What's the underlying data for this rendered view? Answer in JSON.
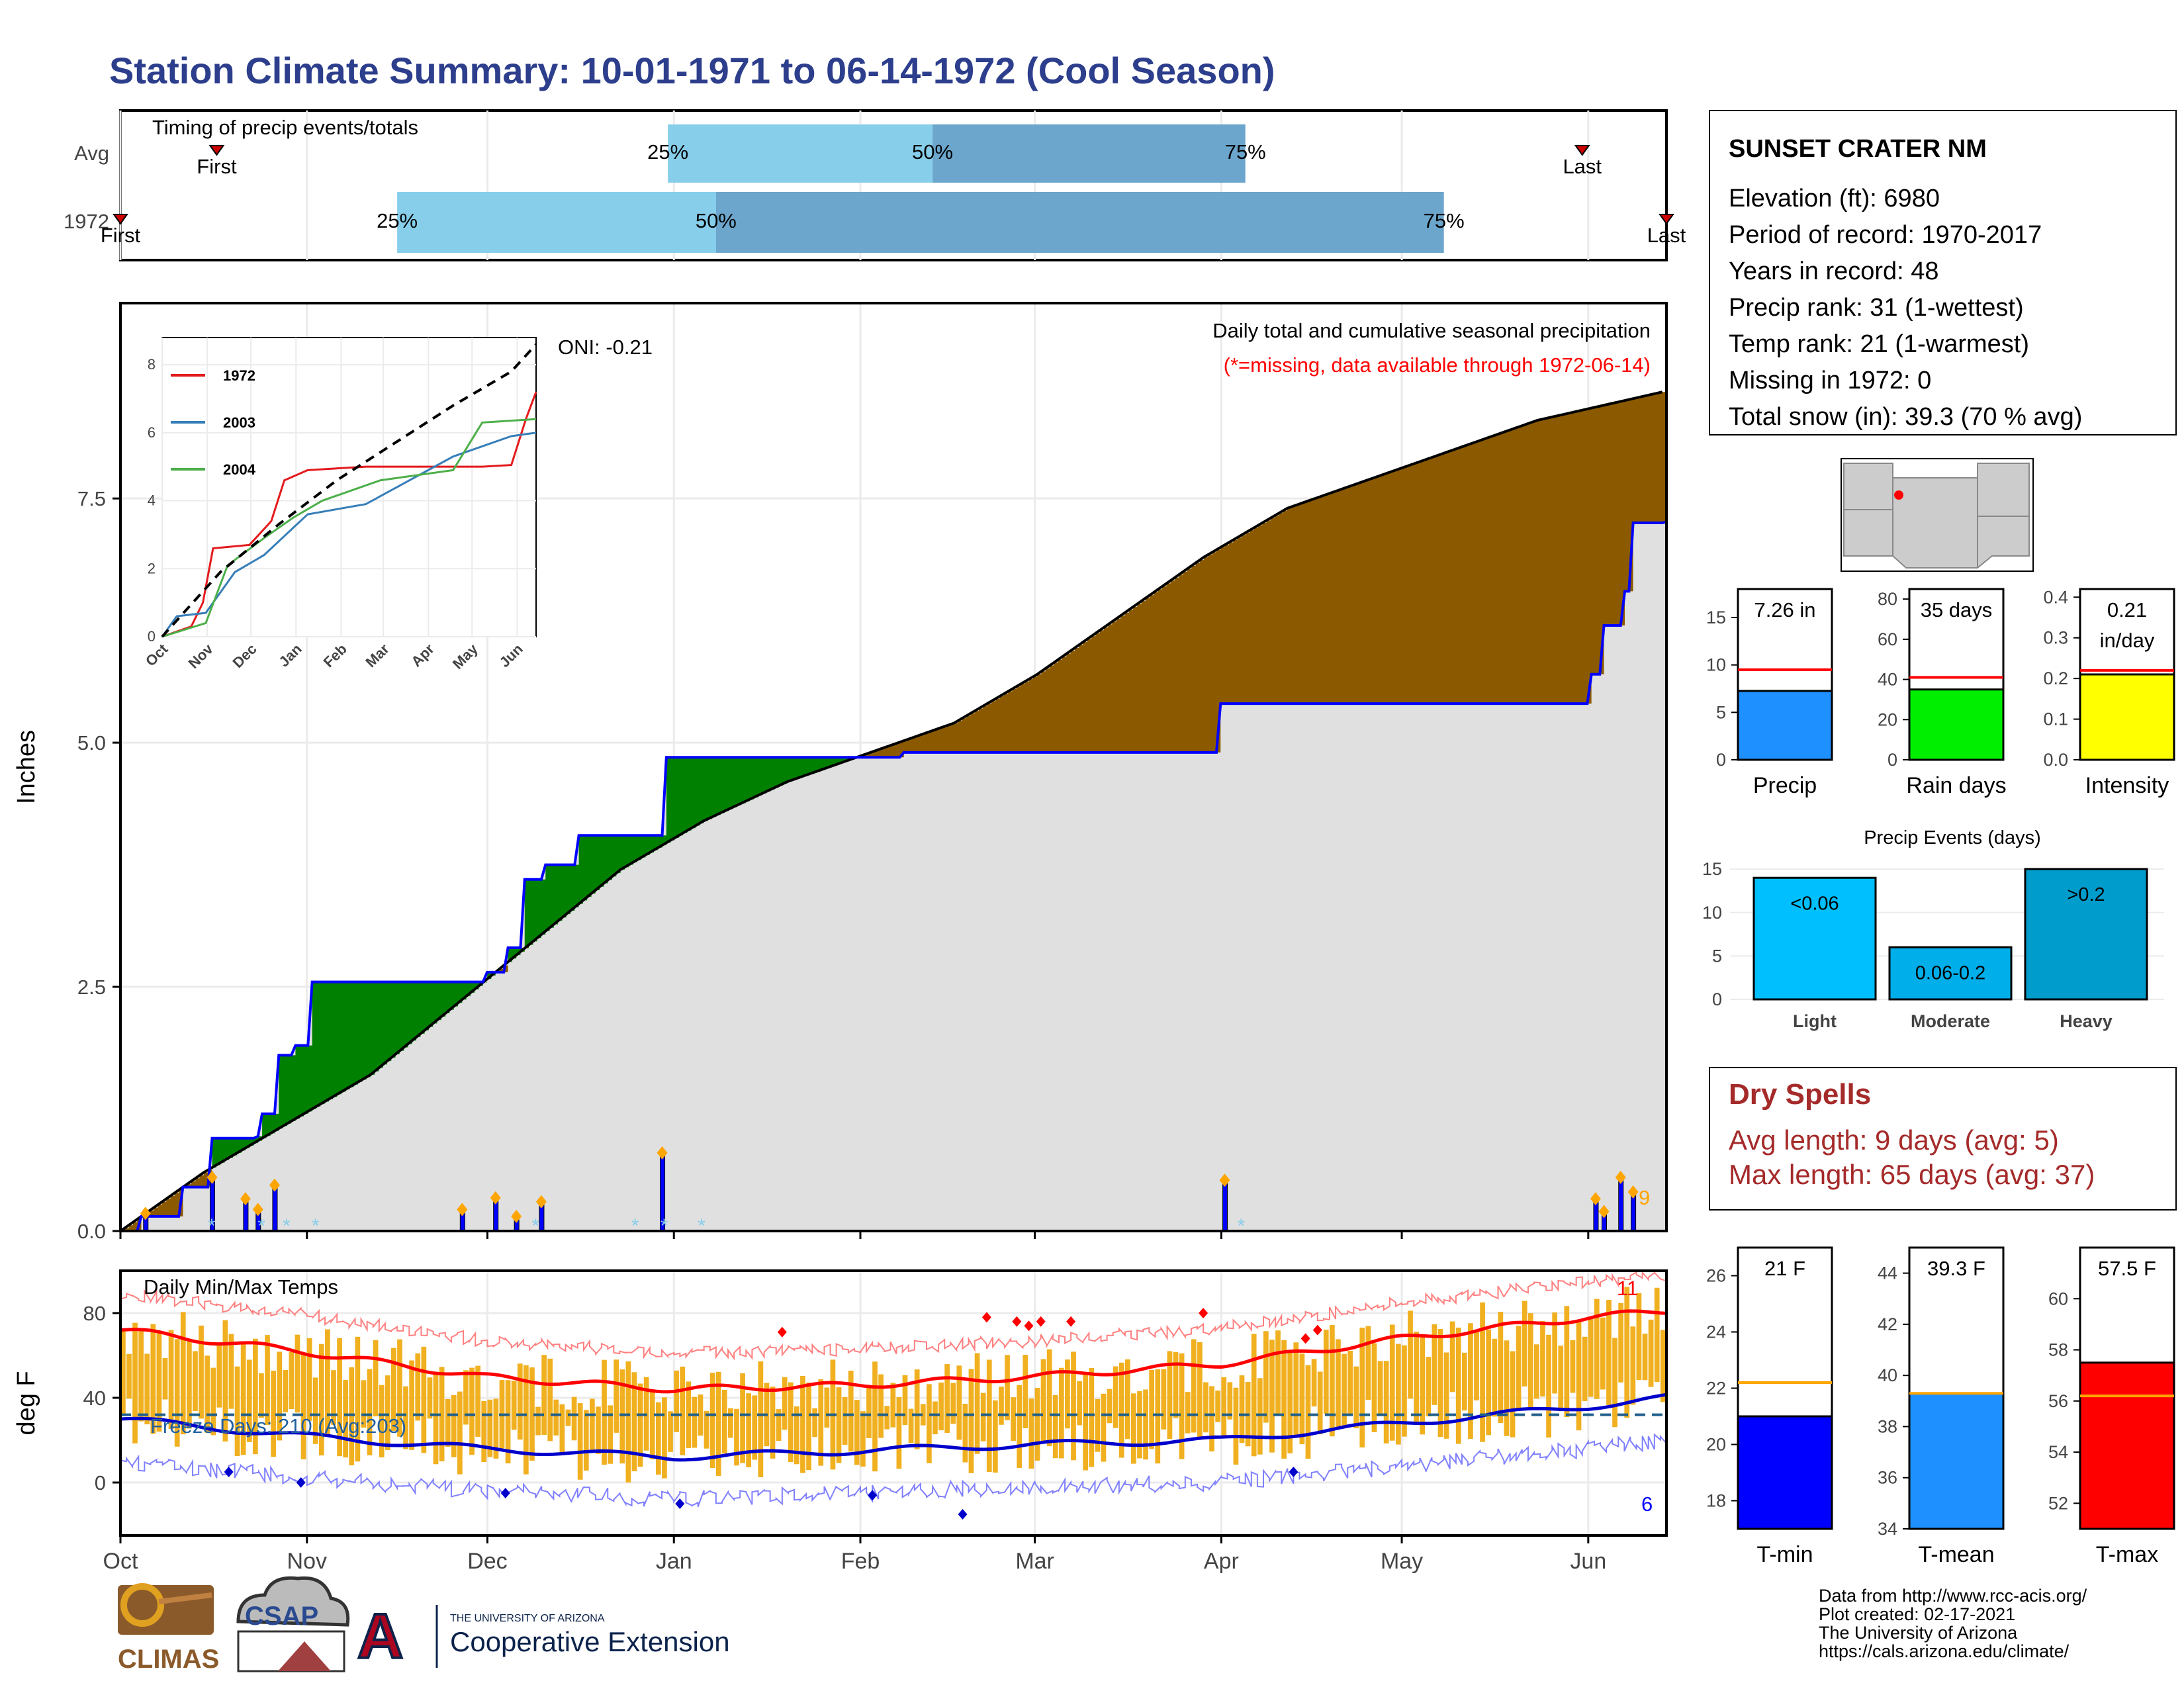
{
  "title": "Station Climate Summary: 10-01-1971 to 06-14-1972 (Cool Season)",
  "colors": {
    "title": "#2c3e8c",
    "precip_fill": "#8b5a00",
    "wet_fill": "#008000",
    "avg_fill": "#e0e0e0",
    "avg_line": "#000000",
    "current_line": "#0000ff",
    "q_light": "#87ceeb",
    "q_dark": "#6ca6cd",
    "temp_bar": "#f0b020",
    "red": "#ff0000",
    "blue": "#0000ff",
    "dry_red": "#a52a2a"
  },
  "timing": {
    "label": "Timing of precip events/totals",
    "rows": [
      "Avg",
      "1972"
    ],
    "avg": {
      "first_label": "First",
      "last_label": "Last",
      "first": "Oct 17",
      "last": "May 31",
      "p25": "Dec 31",
      "p50": "Feb 13",
      "p75": "Apr 05"
    },
    "cur": {
      "first_label": "First",
      "last_label": "Last",
      "first": "Oct 01",
      "last": "Jun 14",
      "p25": "Nov 16",
      "p50": "Jan 08",
      "p75": "May 08"
    },
    "pct_labels": [
      "25%",
      "50%",
      "75%"
    ]
  },
  "months": [
    "Oct",
    "Nov",
    "Dec",
    "Jan",
    "Feb",
    "Mar",
    "Apr",
    "May",
    "Jun"
  ],
  "precip": {
    "ylabel": "Inches",
    "yticks": [
      "0.0",
      "2.5",
      "5.0",
      "7.5"
    ],
    "annot1": "Daily total and cumulative seasonal precipitation",
    "annot2": "(*=missing, data available through 1972-06-14)",
    "oni": "ONI: -0.21",
    "count_label": "9"
  },
  "inset": {
    "yticks": [
      "0",
      "2",
      "4",
      "6",
      "8"
    ],
    "months": [
      "Oct",
      "Nov",
      "Dec",
      "Jan",
      "Feb",
      "Mar",
      "Apr",
      "May",
      "Jun"
    ],
    "legend": [
      "1972",
      "2003",
      "2004"
    ]
  },
  "temps": {
    "ylabel": "deg F",
    "yticks": [
      "0",
      "40",
      "80"
    ],
    "title": "Daily Min/Max Temps",
    "freeze": "Freeze Days: 210 (Avg:203)",
    "count_hi": "11",
    "count_lo": "6"
  },
  "station": {
    "name": "SUNSET CRATER NM",
    "lines": [
      "Elevation (ft): 6980",
      "Period of record: 1970-2017",
      "Years in record: 48",
      "Precip rank: 31 (1-wettest)",
      "Temp rank: 21 (1-warmest)",
      "Missing in 1972: 0",
      "Total snow (in): 39.3 (70 % avg)"
    ]
  },
  "mini_bars": {
    "precip": {
      "value_label": "7.26 in",
      "xlabel": "Precip",
      "yticks": [
        "0",
        "5",
        "10",
        "15"
      ]
    },
    "rain_days": {
      "value_label": "35 days",
      "xlabel": "Rain days",
      "yticks": [
        "0",
        "20",
        "40",
        "60",
        "80"
      ]
    },
    "intensity": {
      "value_label": "0.21\nin/day",
      "label_a": "0.21",
      "label_b": "in/day",
      "xlabel": "Intensity",
      "yticks": [
        "0.0",
        "0.1",
        "0.2",
        "0.3",
        "0.4"
      ]
    }
  },
  "events": {
    "title": "Precip Events (days)",
    "yticks": [
      "0",
      "5",
      "10",
      "15"
    ],
    "bars": [
      {
        "cat": "Light",
        "label": "<0.06"
      },
      {
        "cat": "Moderate",
        "label": "0.06-0.2"
      },
      {
        "cat": "Heavy",
        "label": ">0.2"
      }
    ]
  },
  "dry": {
    "title": "Dry Spells",
    "line1": "Avg length: 9 days (avg: 5)",
    "line2": "Max length: 65 days (avg: 37)"
  },
  "temp_bars": {
    "tmin": {
      "value_label": "21 F",
      "xlabel": "T-min",
      "yticks": [
        "18",
        "20",
        "22",
        "24",
        "26"
      ]
    },
    "tmean": {
      "value_label": "39.3 F",
      "xlabel": "T-mean",
      "yticks": [
        "34",
        "36",
        "38",
        "40",
        "42",
        "44"
      ]
    },
    "tmax": {
      "value_label": "57.5 F",
      "xlabel": "T-max",
      "yticks": [
        "52",
        "54",
        "56",
        "58",
        "60"
      ]
    }
  },
  "footer": {
    "lines": [
      "Data from http://www.rcc-acis.org/",
      "Plot created: 02-17-2021",
      "The University of Arizona",
      "https://cals.arizona.edu/climate/"
    ],
    "logo_climas": "CLIMAS",
    "logo_csap": "CSAP",
    "logo_ua_small": "THE UNIVERSITY OF ARIZONA",
    "logo_ua_big": "Cooperative Extension"
  },
  "chart_data": [
    {
      "type": "bar",
      "title": "Timing of precip events/totals",
      "categories": [
        "Avg",
        "1972"
      ],
      "series": [
        {
          "name": "25%",
          "values": [
            "Dec 31",
            "Nov 16"
          ]
        },
        {
          "name": "50%",
          "values": [
            "Feb 13",
            "Jan 08"
          ]
        },
        {
          "name": "75%",
          "values": [
            "Apr 05",
            "May 08"
          ]
        }
      ]
    },
    {
      "type": "area",
      "title": "Daily total and cumulative seasonal precipitation",
      "ylabel": "Inches",
      "ylim": [
        0,
        9.5
      ],
      "cumulative_1972": [
        [
          0,
          0
        ],
        [
          5,
          0.15
        ],
        [
          15,
          0.45
        ],
        [
          22,
          0.95
        ],
        [
          33,
          0.97
        ],
        [
          34,
          1.2
        ],
        [
          38,
          1.8
        ],
        [
          42,
          1.9
        ],
        [
          46,
          2.55
        ],
        [
          83,
          2.55
        ],
        [
          88,
          2.65
        ],
        [
          93,
          2.9
        ],
        [
          97,
          3.6
        ],
        [
          102,
          3.75
        ],
        [
          110,
          4.05
        ],
        [
          127,
          4.05
        ],
        [
          131,
          4.85
        ],
        [
          172,
          4.85
        ],
        [
          188,
          4.9
        ],
        [
          219,
          4.9
        ],
        [
          220,
          4.9
        ],
        [
          262,
          4.9
        ],
        [
          264,
          5.4
        ],
        [
          352,
          5.4
        ],
        [
          353,
          5.7
        ],
        [
          356,
          6.2
        ],
        [
          361,
          6.55
        ],
        [
          363,
          7.25
        ],
        [
          371,
          7.26
        ]
      ],
      "cumulative_avg": [
        [
          0,
          0
        ],
        [
          20,
          0.6
        ],
        [
          40,
          1.1
        ],
        [
          60,
          1.6
        ],
        [
          80,
          2.3
        ],
        [
          100,
          3.0
        ],
        [
          120,
          3.7
        ],
        [
          140,
          4.2
        ],
        [
          160,
          4.6
        ],
        [
          180,
          4.9
        ],
        [
          200,
          5.2
        ],
        [
          220,
          5.7
        ],
        [
          240,
          6.3
        ],
        [
          260,
          6.9
        ],
        [
          280,
          7.4
        ],
        [
          300,
          7.7
        ],
        [
          320,
          8.0
        ],
        [
          340,
          8.3
        ],
        [
          371,
          8.6
        ]
      ],
      "daily": [
        [
          6,
          0.18
        ],
        [
          22,
          0.55
        ],
        [
          30,
          0.33
        ],
        [
          33,
          0.22
        ],
        [
          37,
          0.47
        ],
        [
          82,
          0.22
        ],
        [
          90,
          0.34
        ],
        [
          95,
          0.15
        ],
        [
          101,
          0.3
        ],
        [
          130,
          0.8
        ],
        [
          265,
          0.52
        ],
        [
          354,
          0.33
        ],
        [
          356,
          0.2
        ],
        [
          360,
          0.55
        ],
        [
          363,
          0.4
        ]
      ]
    },
    {
      "type": "line",
      "title": "Daily Min/Max Temps",
      "ylabel": "deg F",
      "series": [
        {
          "name": "avg max",
          "values": [
            [
              0,
              72
            ],
            [
              30,
              62
            ],
            [
              60,
              50
            ],
            [
              92,
              44
            ],
            [
              123,
              46
            ],
            [
              152,
              50
            ],
            [
              183,
              56
            ],
            [
              213,
              68
            ],
            [
              244,
              78
            ],
            [
              257,
              81
            ]
          ]
        },
        {
          "name": "avg min",
          "values": [
            [
              0,
              30
            ],
            [
              30,
              22
            ],
            [
              60,
              16
            ],
            [
              92,
              12
            ],
            [
              123,
              15
            ],
            [
              152,
              18
            ],
            [
              183,
              20
            ],
            [
              213,
              28
            ],
            [
              244,
              36
            ],
            [
              257,
              40
            ]
          ]
        }
      ]
    },
    {
      "type": "bar",
      "categories": [
        "Precip"
      ],
      "values": [
        7.26
      ],
      "ylim": [
        0,
        18
      ]
    },
    {
      "type": "bar",
      "categories": [
        "Rain days"
      ],
      "values": [
        35
      ],
      "ylim": [
        0,
        85
      ]
    },
    {
      "type": "bar",
      "categories": [
        "Intensity"
      ],
      "values": [
        0.21
      ],
      "ylim": [
        0,
        0.42
      ]
    },
    {
      "type": "bar",
      "title": "Precip Events (days)",
      "categories": [
        "Light",
        "Moderate",
        "Heavy"
      ],
      "values": [
        14,
        6,
        15
      ],
      "ylim": [
        0,
        16
      ]
    },
    {
      "type": "bar",
      "categories": [
        "T-min"
      ],
      "values": [
        21
      ],
      "ylim": [
        17,
        27
      ]
    },
    {
      "type": "bar",
      "categories": [
        "T-mean"
      ],
      "values": [
        39.3
      ],
      "ylim": [
        34,
        45
      ]
    },
    {
      "type": "bar",
      "categories": [
        "T-max"
      ],
      "values": [
        57.5
      ],
      "ylim": [
        51,
        62
      ]
    }
  ]
}
